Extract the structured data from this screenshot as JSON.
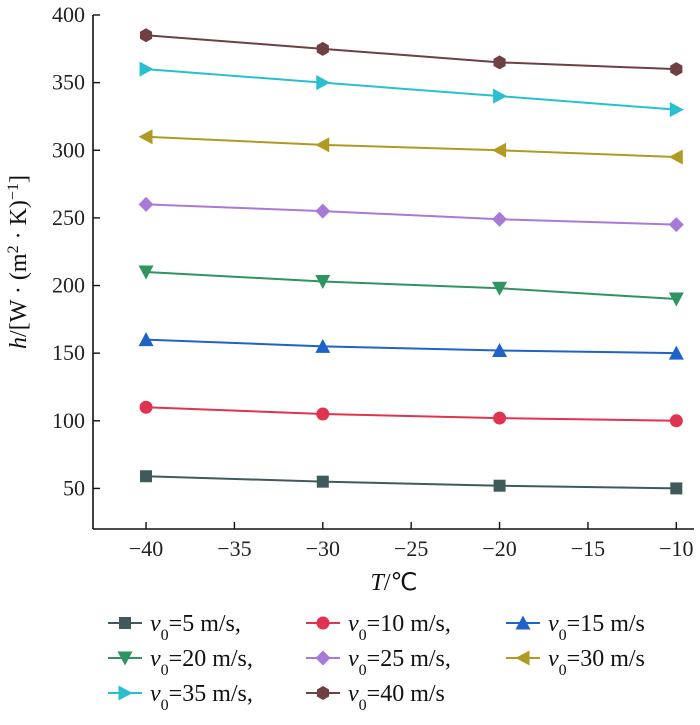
{
  "chart_data": {
    "type": "line",
    "x": [
      -40,
      -30,
      -20,
      -10
    ],
    "xlabel": {
      "var": "T",
      "unit": "℃"
    },
    "ylabel": {
      "var": "h",
      "unit_prefix": "[W · (m",
      "unit_exp": "2",
      "unit_mid": " · K)",
      "unit_exp2": "−1",
      "unit_close": "]"
    },
    "xlim": [
      -43,
      -9
    ],
    "ylim": [
      20,
      400
    ],
    "xticks": [
      -40,
      -35,
      -30,
      -25,
      -20,
      -15,
      -10
    ],
    "xtick_labels": [
      "−40",
      "−35",
      "−30",
      "−25",
      "−20",
      "−15",
      "−10"
    ],
    "yticks": [
      50,
      100,
      150,
      200,
      250,
      300,
      350,
      400
    ],
    "ytick_labels": [
      "50",
      "100",
      "150",
      "200",
      "250",
      "300",
      "350",
      "400"
    ],
    "grid": false,
    "legend_placement": "bottom",
    "series": [
      {
        "name": "v0=5 m/s",
        "label_main": "v",
        "label_sub": "0",
        "label_rest": "=5 m/s,",
        "color": "#3f5a5a",
        "marker": "square",
        "values": [
          59,
          55,
          52,
          50
        ]
      },
      {
        "name": "v0=10 m/s",
        "label_main": "v",
        "label_sub": "0",
        "label_rest": "=10 m/s,",
        "color": "#e0334f",
        "marker": "circle",
        "values": [
          110,
          105,
          102,
          100
        ]
      },
      {
        "name": "v0=15 m/s",
        "label_main": "v",
        "label_sub": "0",
        "label_rest": "=15 m/s",
        "color": "#1e63c8",
        "marker": "triangle-up",
        "values": [
          160,
          155,
          152,
          150
        ]
      },
      {
        "name": "v0=20 m/s",
        "label_main": "v",
        "label_sub": "0",
        "label_rest": "=20 m/s,",
        "color": "#2e9460",
        "marker": "triangle-down",
        "values": [
          210,
          203,
          198,
          190
        ]
      },
      {
        "name": "v0=25 m/s",
        "label_main": "v",
        "label_sub": "0",
        "label_rest": "=25 m/s,",
        "color": "#a77ad8",
        "marker": "diamond",
        "values": [
          260,
          255,
          249,
          245
        ]
      },
      {
        "name": "v0=30 m/s",
        "label_main": "v",
        "label_sub": "0",
        "label_rest": "=30 m/s",
        "color": "#b09a22",
        "marker": "triangle-left",
        "values": [
          310,
          304,
          300,
          295
        ]
      },
      {
        "name": "v0=35 m/s",
        "label_main": "v",
        "label_sub": "0",
        "label_rest": "=35 m/s,",
        "color": "#28c0d0",
        "marker": "triangle-right",
        "values": [
          360,
          350,
          340,
          330
        ]
      },
      {
        "name": "v0=40 m/s",
        "label_main": "v",
        "label_sub": "0",
        "label_rest": "=40 m/s",
        "color": "#6e3f43",
        "marker": "hexagon",
        "values": [
          385,
          375,
          365,
          360
        ]
      }
    ]
  }
}
